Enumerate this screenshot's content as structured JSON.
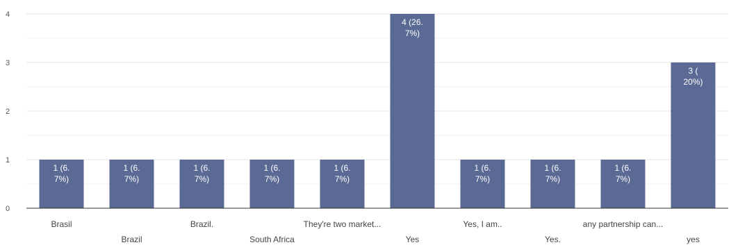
{
  "chart_data": {
    "type": "bar",
    "categories": [
      "Brasil",
      "Brazil",
      "Brazil.",
      "South Africa",
      "They're two market...",
      "Yes",
      "Yes, I am..",
      "Yes.",
      "any partnership can...",
      "yes"
    ],
    "values": [
      1,
      1,
      1,
      1,
      1,
      4,
      1,
      1,
      1,
      3
    ],
    "data_labels": [
      "1 (6.\n7%)",
      "1 (6.\n7%)",
      "1 (6.\n7%)",
      "1 (6.\n7%)",
      "1 (6.\n7%)",
      "4 (26.\n7%)",
      "1 (6.\n7%)",
      "1 (6.\n7%)",
      "1 (6.\n7%)",
      "3 (\n20%)"
    ],
    "title": "",
    "xlabel": "",
    "ylabel": "",
    "ylim": [
      0,
      4
    ],
    "yticks": [
      0,
      1,
      2,
      3,
      4
    ],
    "grid": true,
    "legend": "none",
    "bar_color": "#5b6a94",
    "grid_color": "#e6e6e6",
    "axis_color": "#333333"
  }
}
